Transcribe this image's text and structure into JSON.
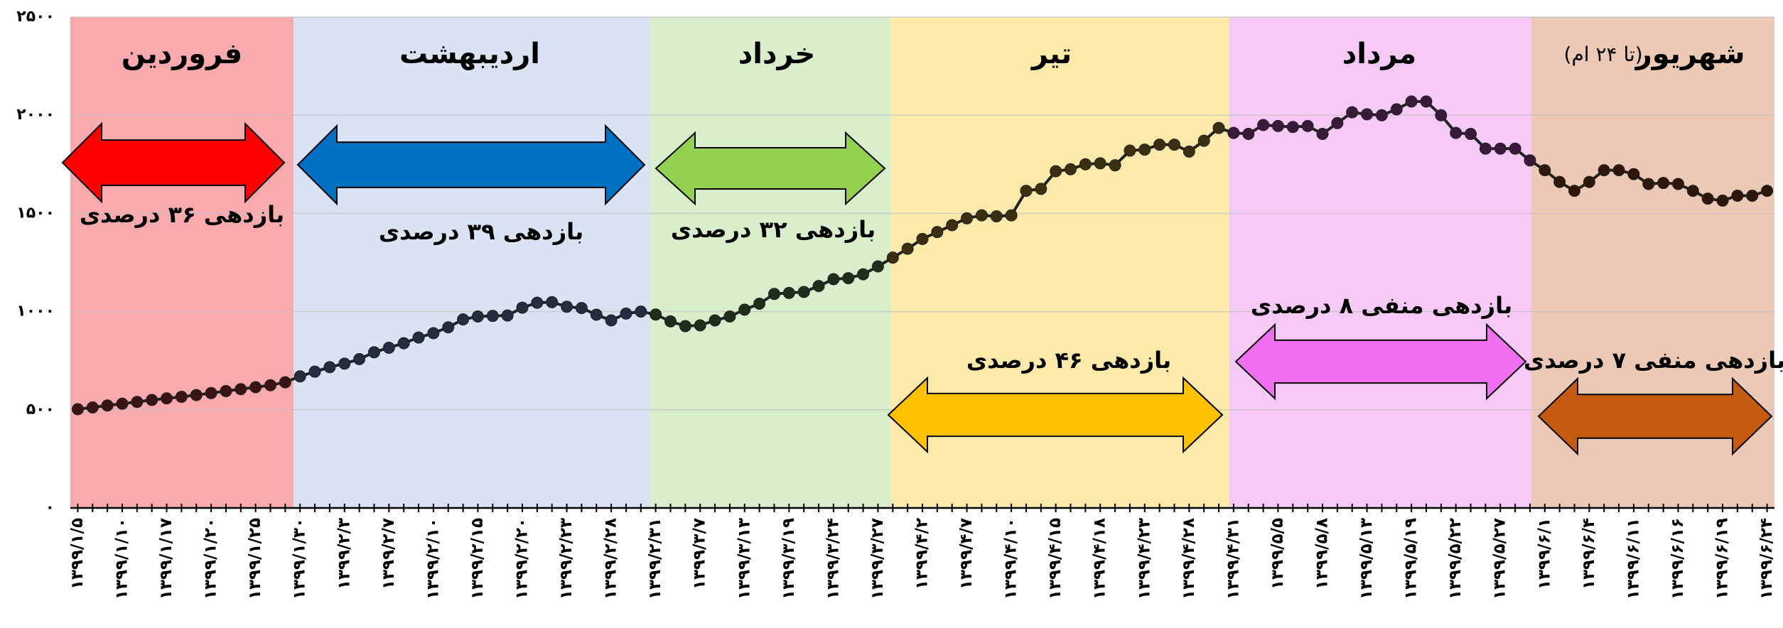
{
  "chart_data": {
    "type": "line",
    "categories": [
      "۱۳۹۹/۱/۵",
      null,
      null,
      "۱۳۹۹/۱/۱۰",
      null,
      null,
      "۱۳۹۹/۱/۱۷",
      null,
      null,
      "۱۳۹۹/۱/۲۰",
      null,
      null,
      "۱۳۹۹/۱/۲۵",
      null,
      null,
      "۱۳۹۹/۱/۳۰",
      null,
      null,
      "۱۳۹۹/۲/۳",
      null,
      null,
      "۱۳۹۹/۲/۷",
      null,
      null,
      "۱۳۹۹/۲/۱۰",
      null,
      null,
      "۱۳۹۹/۲/۱۵",
      null,
      null,
      "۱۳۹۹/۲/۲۰",
      null,
      null,
      "۱۳۹۹/۲/۲۳",
      null,
      null,
      "۱۳۹۹/۲/۲۸",
      null,
      null,
      "۱۳۹۹/۲/۳۱",
      null,
      null,
      "۱۳۹۹/۳/۷",
      null,
      null,
      "۱۳۹۹/۳/۱۳",
      null,
      null,
      "۱۳۹۹/۳/۱۹",
      null,
      null,
      "۱۳۹۹/۳/۲۴",
      null,
      null,
      "۱۳۹۹/۳/۲۷",
      null,
      null,
      "۱۳۹۹/۴/۲",
      null,
      null,
      "۱۳۹۹/۴/۷",
      null,
      null,
      "۱۳۹۹/۴/۱۰",
      null,
      null,
      "۱۳۹۹/۴/۱۵",
      null,
      null,
      "۱۳۹۹/۴/۱۸",
      null,
      null,
      "۱۳۹۹/۴/۲۳",
      null,
      null,
      "۱۳۹۹/۴/۲۸",
      null,
      null,
      "۱۳۹۹/۴/۳۱",
      null,
      null,
      "۱۳۹۹/۵/۵",
      null,
      null,
      "۱۳۹۹/۵/۸",
      null,
      null,
      "۱۳۹۹/۵/۱۳",
      null,
      null,
      "۱۳۹۹/۵/۱۹",
      null,
      null,
      "۱۳۹۹/۵/۲۲",
      null,
      null,
      "۱۳۹۹/۵/۲۷",
      null,
      null,
      "۱۳۹۹/۶/۱",
      null,
      null,
      "۱۳۹۹/۶/۴",
      null,
      null,
      "۱۳۹۹/۶/۱۱",
      null,
      null,
      "۱۳۹۹/۶/۱۶",
      null,
      null,
      "۱۳۹۹/۶/۱۹",
      null,
      null,
      "۱۳۹۹/۶/۲۴"
    ],
    "values": [
      503,
      512,
      522,
      531,
      540,
      550,
      558,
      566,
      575,
      585,
      595,
      605,
      615,
      625,
      640,
      670,
      694,
      717,
      735,
      758,
      793,
      816,
      839,
      868,
      890,
      920,
      960,
      975,
      978,
      980,
      1020,
      1045,
      1048,
      1025,
      1018,
      984,
      955,
      990,
      1000,
      985,
      950,
      926,
      930,
      955,
      975,
      1010,
      1040,
      1090,
      1095,
      1100,
      1130,
      1165,
      1170,
      1190,
      1230,
      1275,
      1320,
      1370,
      1405,
      1440,
      1475,
      1490,
      1485,
      1490,
      1615,
      1625,
      1715,
      1725,
      1750,
      1755,
      1745,
      1820,
      1825,
      1850,
      1850,
      1815,
      1870,
      1935,
      1910,
      1905,
      1950,
      1945,
      1940,
      1945,
      1905,
      1960,
      2015,
      2005,
      2000,
      2030,
      2070,
      2070,
      2000,
      1910,
      1905,
      1830,
      1830,
      1830,
      1770,
      1720,
      1660,
      1615,
      1660,
      1720,
      1720,
      1700,
      1650,
      1655,
      1650,
      1615,
      1575,
      1565,
      1590,
      1590,
      1615
    ],
    "ylim": [
      0,
      2500
    ],
    "yticks": [
      {
        "value": 0,
        "label": "۰"
      },
      {
        "value": 500,
        "label": "۵۰۰"
      },
      {
        "value": 1000,
        "label": "۱۰۰۰"
      },
      {
        "value": 1500,
        "label": "۱۵۰۰"
      },
      {
        "value": 2000,
        "label": "۲۰۰۰"
      },
      {
        "value": 2500,
        "label": "۲۵۰۰"
      }
    ],
    "grid": true,
    "line_color": "#222222",
    "months": [
      {
        "name": "فروردین",
        "return_label": "بازدهی ۳۶ درصدی",
        "band_color": "#f9aaad",
        "arrow_color": "#ff0000",
        "marker_color": "#3a1414"
      },
      {
        "name": "اردیبهشت",
        "return_label": "بازدهی ۳۹ درصدی",
        "band_color": "#dae3f3",
        "arrow_color": "#0070c0",
        "marker_color": "#222d3f"
      },
      {
        "name": "خرداد",
        "return_label": "بازدهی ۳۲ درصدی",
        "band_color": "#d9eecb",
        "arrow_color": "#92d050",
        "marker_color": "#1f2e1a"
      },
      {
        "name": "تیر",
        "return_label": "بازدهی ۴۶ درصدی",
        "band_color": "#fde9a9",
        "arrow_color": "#ffc000",
        "marker_color": "#3a3010"
      },
      {
        "name": "مرداد",
        "return_label": "بازدهی منفی ۸ درصدی",
        "band_color": "#f7c9f7",
        "arrow_color": "#f06ef0",
        "marker_color": "#3a1a3a"
      },
      {
        "name": "شهریور",
        "note": "(تا ۲۴ ام)",
        "return_label": "بازدهی منفی ۷ درصدی",
        "band_color": "#ebc9b5",
        "arrow_color": "#c55a11",
        "marker_color": "#2e1608"
      }
    ]
  }
}
